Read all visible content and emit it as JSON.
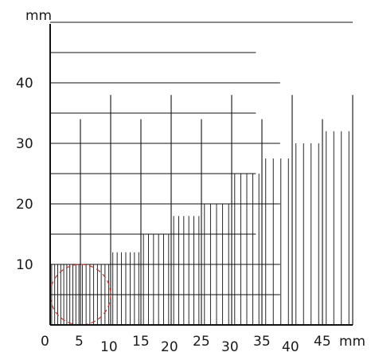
{
  "units": {
    "y": "mm",
    "x": "mm"
  },
  "y_ticks": [
    "10",
    "20",
    "30",
    "40"
  ],
  "x_ticks": [
    "0",
    "5",
    "10",
    "15",
    "20",
    "25",
    "30",
    "35",
    "40",
    "45"
  ],
  "colors": {
    "lines": "#111111",
    "circle": "#c0392b"
  },
  "diagram_data": {
    "type": "line-gauge",
    "x_range_mm": [
      0,
      50
    ],
    "y_range_mm": [
      0,
      50
    ],
    "staircase_steps": [
      {
        "x_from": 0,
        "x_to": 5,
        "height": 10,
        "spacing": 0.5
      },
      {
        "x_from": 5,
        "x_to": 10,
        "height": 10,
        "spacing": 0.6
      },
      {
        "x_from": 10,
        "x_to": 15,
        "height": 12,
        "spacing": 0.7
      },
      {
        "x_from": 15,
        "x_to": 20,
        "height": 15,
        "spacing": 0.8
      },
      {
        "x_from": 20,
        "x_to": 25,
        "height": 18,
        "spacing": 0.9
      },
      {
        "x_from": 25,
        "x_to": 30,
        "height": 20,
        "spacing": 1.0
      },
      {
        "x_from": 30,
        "x_to": 35,
        "height": 25,
        "spacing": 1.1
      },
      {
        "x_from": 35,
        "x_to": 40,
        "height": 27.5,
        "spacing": 1.2
      },
      {
        "x_from": 40,
        "x_to": 45,
        "height": 30,
        "spacing": 1.3
      },
      {
        "x_from": 45,
        "x_to": 50,
        "height": 32,
        "spacing": 1.4
      }
    ],
    "major_verticals": [
      {
        "x": 5,
        "height": 34
      },
      {
        "x": 10,
        "height": 38
      },
      {
        "x": 15,
        "height": 34
      },
      {
        "x": 20,
        "height": 38
      },
      {
        "x": 25,
        "height": 34
      },
      {
        "x": 30,
        "height": 38
      },
      {
        "x": 35,
        "height": 34
      },
      {
        "x": 40,
        "height": 38
      },
      {
        "x": 45,
        "height": 34
      },
      {
        "x": 50,
        "height": 38
      }
    ],
    "horizontal_lines": [
      {
        "y": 5,
        "x_to": 38
      },
      {
        "y": 10,
        "x_to": 38
      },
      {
        "y": 15,
        "x_to": 34
      },
      {
        "y": 20,
        "x_to": 38
      },
      {
        "y": 25,
        "x_to": 34
      },
      {
        "y": 30,
        "x_to": 38
      },
      {
        "y": 35,
        "x_to": 34
      },
      {
        "y": 40,
        "x_to": 38
      },
      {
        "y": 45,
        "x_to": 34
      },
      {
        "y": 50,
        "x_to": 50
      }
    ],
    "circle": {
      "cx": 5,
      "cy": 5,
      "r": 5
    }
  }
}
